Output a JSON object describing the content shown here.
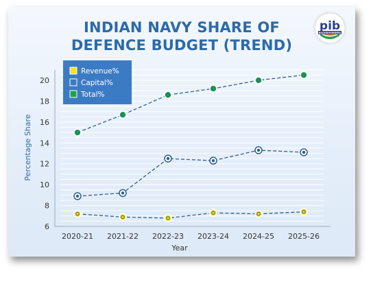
{
  "header": {
    "title_line1": "INDIAN NAVY SHARE OF",
    "title_line2": "DEFENCE BUDGET (TREND)"
  },
  "logo": {
    "text": "pib",
    "subtext": "BACKGROUNDERS"
  },
  "chart_data": {
    "type": "line",
    "title": "INDIAN NAVY SHARE OF DEFENCE BUDGET (TREND)",
    "xlabel": "Year",
    "ylabel": "Percentage Share",
    "categories": [
      "2020-21",
      "2021-22",
      "2022-23",
      "2023-24",
      "2024-25",
      "2025-26"
    ],
    "ylim": [
      6,
      21
    ],
    "yticks": [
      6,
      8,
      10,
      12,
      14,
      16,
      18,
      20
    ],
    "grid": true,
    "legend": "top-left",
    "series": [
      {
        "name": "Revenue%",
        "color": "#f5e31a",
        "values": [
          7.2,
          6.9,
          6.8,
          7.3,
          7.2,
          7.4
        ]
      },
      {
        "name": "Capital%",
        "color": "#ffffff",
        "values": [
          8.9,
          9.2,
          12.5,
          12.3,
          13.3,
          13.1
        ]
      },
      {
        "name": "Total%",
        "color": "#1fa24a",
        "values": [
          15.0,
          16.7,
          18.6,
          19.2,
          20.0,
          20.5
        ]
      }
    ],
    "line_color": "#2d5f8e",
    "accent_color": "#2d6aa8"
  }
}
